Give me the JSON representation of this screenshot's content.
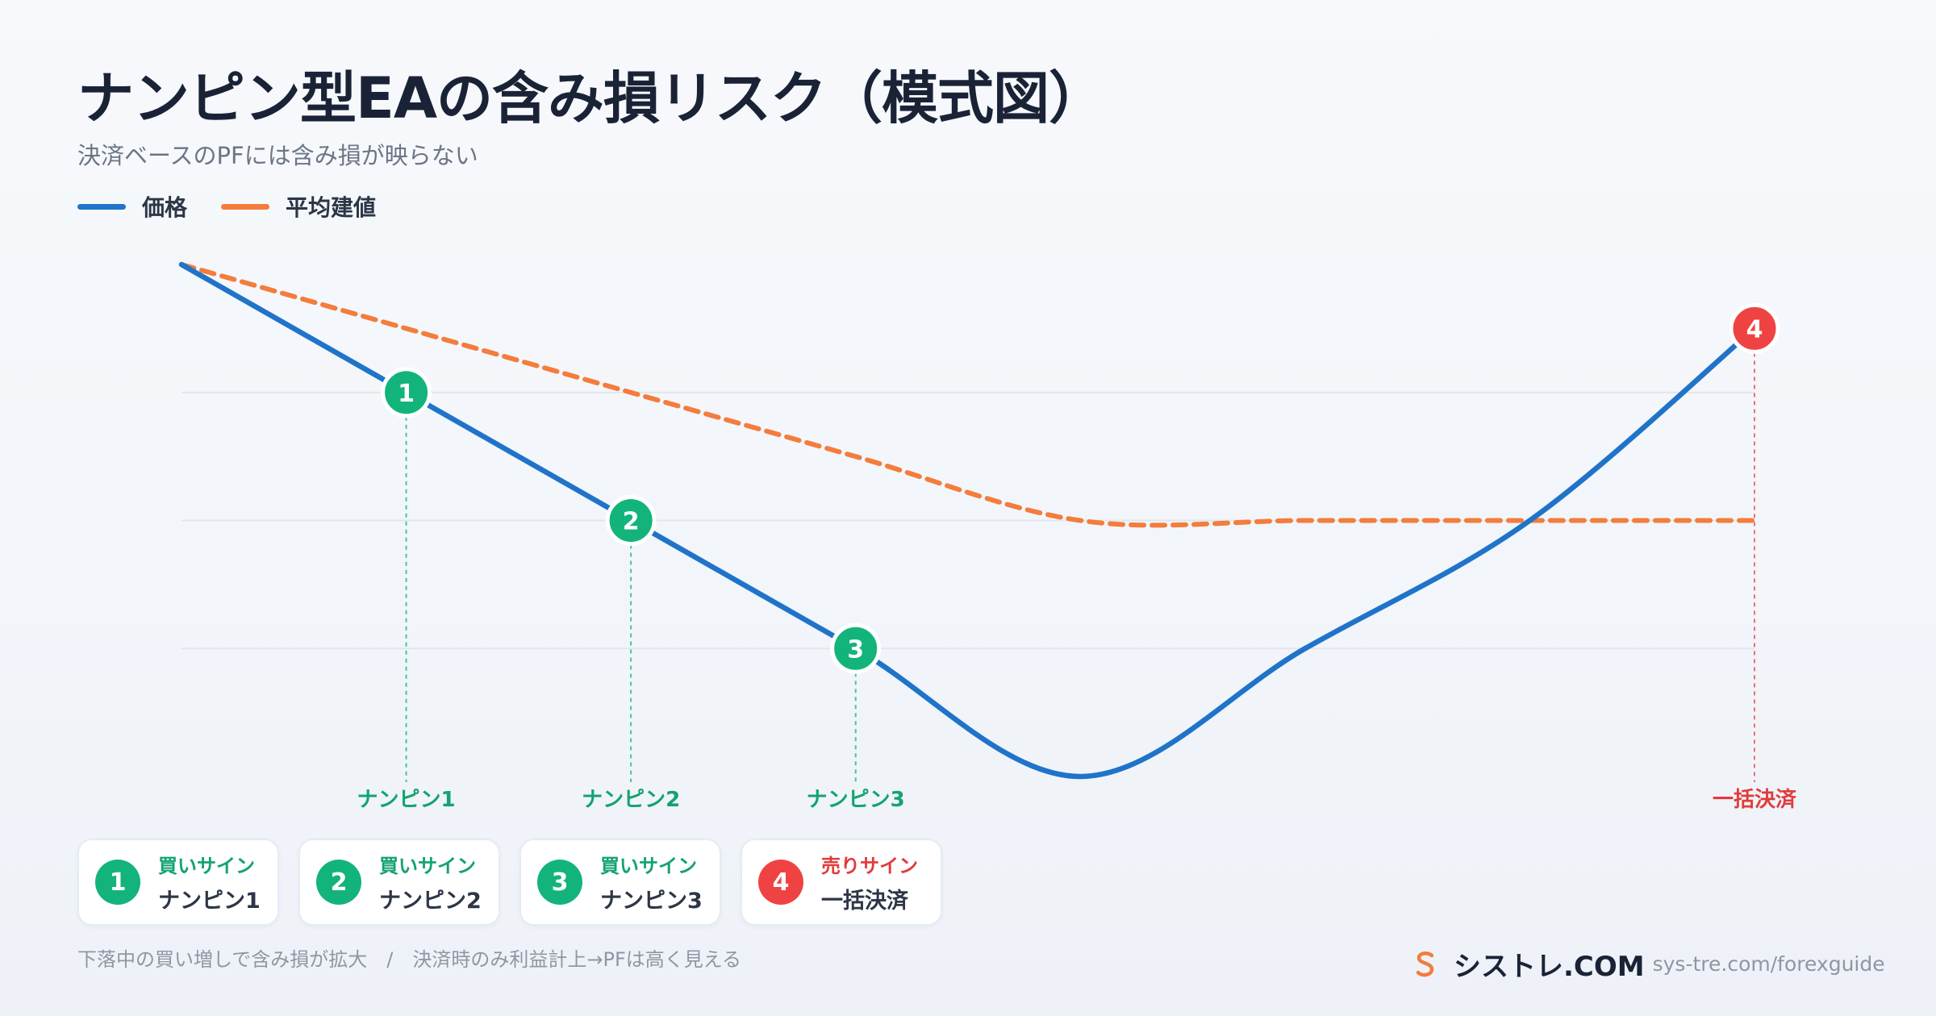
{
  "title": "ナンピン型EAの含み損リスク（模式図）",
  "subtitle": "決済ベースのPFには含み損が映らない",
  "colors": {
    "price": "#1f74c9",
    "average_entry": "#f47c3c",
    "buy": "#13b47c",
    "sell": "#ef4343",
    "grid": "#e2e6ec",
    "buy_text": "#13a36f",
    "sell_text": "#e23b3b"
  },
  "chart_data": {
    "type": "line",
    "title": "ナンピン型EAの含み損リスク（模式図）",
    "xlabel": "",
    "ylabel": "",
    "grid": true,
    "legend_position": "top-left",
    "axes_visible": false,
    "series": [
      {
        "name": "価格",
        "style": "solid",
        "points": [
          [
            0,
            0.0
          ],
          [
            1,
            -1.0
          ],
          [
            2,
            -2.0
          ],
          [
            3,
            -3.0
          ],
          [
            4,
            -4.0
          ],
          [
            5,
            -3.0
          ],
          [
            6,
            -2.0
          ],
          [
            7,
            -0.5
          ]
        ]
      },
      {
        "name": "平均建値",
        "style": "dashed",
        "points": [
          [
            0,
            0.0
          ],
          [
            1,
            -0.5
          ],
          [
            2,
            -1.0
          ],
          [
            3,
            -1.5
          ],
          [
            4,
            -2.0
          ],
          [
            5,
            -2.0
          ],
          [
            6,
            -2.0
          ],
          [
            7,
            -2.0
          ]
        ]
      }
    ],
    "events": [
      {
        "id": "1",
        "x": 1,
        "y": -1.0,
        "kind": "buy",
        "label": "ナンピン1"
      },
      {
        "id": "2",
        "x": 2,
        "y": -2.0,
        "kind": "buy",
        "label": "ナンピン2"
      },
      {
        "id": "3",
        "x": 3,
        "y": -3.0,
        "kind": "buy",
        "label": "ナンピン3"
      },
      {
        "id": "4",
        "x": 7,
        "y": -0.5,
        "kind": "sell",
        "label": "一括決済"
      }
    ]
  },
  "cards": [
    {
      "id": "1",
      "signal": "買いサイン",
      "label": "ナンピン1",
      "kind": "buy"
    },
    {
      "id": "2",
      "signal": "買いサイン",
      "label": "ナンピン2",
      "kind": "buy"
    },
    {
      "id": "3",
      "signal": "買いサイン",
      "label": "ナンピン3",
      "kind": "buy"
    },
    {
      "id": "4",
      "signal": "売りサイン",
      "label": "一括決済",
      "kind": "sell"
    }
  ],
  "footer": {
    "note": "下落中の買い増しで含み損が拡大　/　決済時のみ利益計上→PFは高く見える",
    "brand_name": "シストレ.COM",
    "brand_url": "sys-tre.com/forexguide",
    "logo_icon": "s-logo-icon"
  }
}
